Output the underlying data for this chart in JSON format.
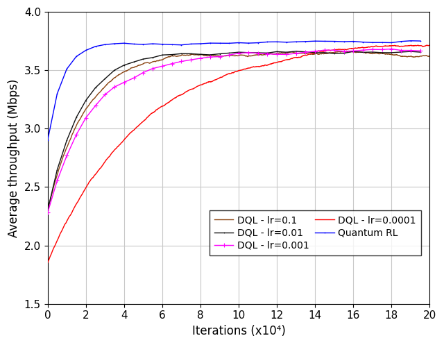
{
  "xlabel": "Iterations (x10⁴)",
  "ylabel": "Average throughput (Mbps)",
  "xlim": [
    0,
    200000
  ],
  "ylim": [
    1.5,
    4.0
  ],
  "xticks": [
    0,
    20000,
    40000,
    60000,
    80000,
    100000,
    120000,
    140000,
    160000,
    180000,
    200000
  ],
  "xticklabels": [
    "0",
    "2",
    "4",
    "6",
    "8",
    "10",
    "12",
    "14",
    "16",
    "18",
    "20"
  ],
  "yticks": [
    1.5,
    2.0,
    2.5,
    3.0,
    3.5,
    4.0
  ],
  "yticklabels": [
    "1.5",
    "2.0",
    "2.5",
    "3.0",
    "3.5",
    "4.0"
  ],
  "n_points": 2000,
  "background_color": "#ffffff",
  "grid_color": "#c8c8c8"
}
